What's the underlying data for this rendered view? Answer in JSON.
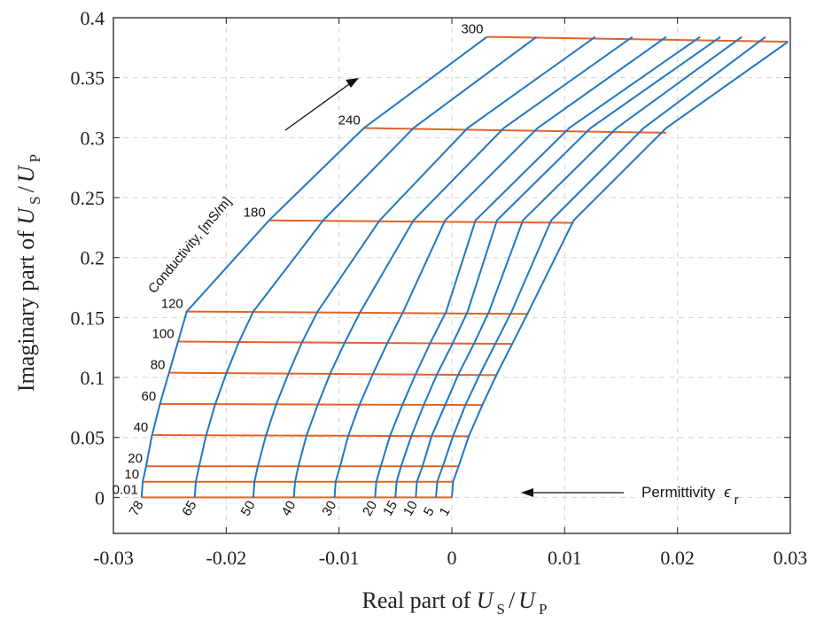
{
  "chart_data": {
    "type": "line",
    "xlabel": {
      "prefix": "Real part of ",
      "a": "U",
      "a_sub": "S",
      "sep": " /",
      "b": "U",
      "b_sub": "P"
    },
    "ylabel": {
      "prefix": "Imaginary part of ",
      "a": "U",
      "a_sub": "S",
      "sep": " /",
      "b": "U",
      "b_sub": "P"
    },
    "xlim": [
      -0.03,
      0.03
    ],
    "ylim": [
      -0.03,
      0.4
    ],
    "x_ticks": [
      -0.03,
      -0.02,
      -0.01,
      0,
      0.01,
      0.02,
      0.03
    ],
    "x_tick_labels": [
      "-0.03",
      "-0.02",
      "-0.01",
      "0",
      "0.01",
      "0.02",
      "0.03"
    ],
    "y_ticks": [
      0,
      0.05,
      0.1,
      0.15,
      0.2,
      0.25,
      0.3,
      0.35,
      0.4
    ],
    "y_tick_labels": [
      "0",
      "0.05",
      "0.1",
      "0.15",
      "0.2",
      "0.25",
      "0.3",
      "0.35",
      "0.4"
    ],
    "grid": true,
    "permittivity_curves": [
      {
        "label": "78",
        "points": [
          [
            -0.0275,
            0.0
          ],
          [
            -0.0274,
            0.013
          ],
          [
            -0.0271,
            0.026
          ],
          [
            -0.0266,
            0.051
          ],
          [
            -0.0259,
            0.077
          ],
          [
            -0.0251,
            0.103
          ],
          [
            -0.0243,
            0.129
          ],
          [
            -0.0235,
            0.155
          ],
          [
            -0.0162,
            0.231
          ],
          [
            -0.0078,
            0.308
          ],
          [
            0.0031,
            0.384
          ]
        ]
      },
      {
        "label": "65",
        "points": [
          [
            -0.0228,
            0.0
          ],
          [
            -0.0227,
            0.013
          ],
          [
            -0.0224,
            0.026
          ],
          [
            -0.0218,
            0.051
          ],
          [
            -0.021,
            0.077
          ],
          [
            -0.02,
            0.103
          ],
          [
            -0.0189,
            0.129
          ],
          [
            -0.0176,
            0.155
          ],
          [
            -0.0114,
            0.231
          ],
          [
            -0.0034,
            0.308
          ],
          [
            0.0075,
            0.384
          ]
        ]
      },
      {
        "label": "50",
        "points": [
          [
            -0.0176,
            0.0
          ],
          [
            -0.0175,
            0.013
          ],
          [
            -0.0172,
            0.026
          ],
          [
            -0.0165,
            0.051
          ],
          [
            -0.0156,
            0.077
          ],
          [
            -0.0145,
            0.103
          ],
          [
            -0.0133,
            0.129
          ],
          [
            -0.0119,
            0.155
          ],
          [
            -0.0064,
            0.231
          ],
          [
            0.0014,
            0.308
          ],
          [
            0.0127,
            0.384
          ]
        ]
      },
      {
        "label": "40",
        "points": [
          [
            -0.014,
            0.0
          ],
          [
            -0.0139,
            0.013
          ],
          [
            -0.0136,
            0.026
          ],
          [
            -0.0129,
            0.051
          ],
          [
            -0.0119,
            0.077
          ],
          [
            -0.0108,
            0.103
          ],
          [
            -0.0095,
            0.129
          ],
          [
            -0.0081,
            0.155
          ],
          [
            -0.0034,
            0.231
          ],
          [
            0.0046,
            0.308
          ],
          [
            0.016,
            0.384
          ]
        ]
      },
      {
        "label": "30",
        "points": [
          [
            -0.0104,
            0.0
          ],
          [
            -0.0103,
            0.013
          ],
          [
            -0.0099,
            0.026
          ],
          [
            -0.0092,
            0.051
          ],
          [
            -0.0082,
            0.077
          ],
          [
            -0.007,
            0.103
          ],
          [
            -0.0057,
            0.129
          ],
          [
            -0.0043,
            0.155
          ],
          [
            -0.0006,
            0.231
          ],
          [
            0.0076,
            0.308
          ],
          [
            0.019,
            0.384
          ]
        ]
      },
      {
        "label": "20",
        "points": [
          [
            -0.0068,
            0.0
          ],
          [
            -0.0067,
            0.013
          ],
          [
            -0.0063,
            0.026
          ],
          [
            -0.0055,
            0.051
          ],
          [
            -0.0044,
            0.077
          ],
          [
            -0.0032,
            0.103
          ],
          [
            -0.0019,
            0.129
          ],
          [
            -0.0005,
            0.155
          ],
          [
            0.0021,
            0.231
          ],
          [
            0.0104,
            0.308
          ],
          [
            0.022,
            0.384
          ]
        ]
      },
      {
        "label": "15",
        "points": [
          [
            -0.005,
            0.0
          ],
          [
            -0.0049,
            0.013
          ],
          [
            -0.0045,
            0.026
          ],
          [
            -0.0036,
            0.051
          ],
          [
            -0.0025,
            0.077
          ],
          [
            -0.0013,
            0.103
          ],
          [
            0.0001,
            0.129
          ],
          [
            0.0014,
            0.155
          ],
          [
            0.004,
            0.231
          ],
          [
            0.0123,
            0.308
          ],
          [
            0.0238,
            0.384
          ]
        ]
      },
      {
        "label": "10",
        "points": [
          [
            -0.0032,
            0.0
          ],
          [
            -0.0031,
            0.013
          ],
          [
            -0.0026,
            0.026
          ],
          [
            -0.0018,
            0.051
          ],
          [
            -0.0006,
            0.077
          ],
          [
            0.0006,
            0.103
          ],
          [
            0.002,
            0.129
          ],
          [
            0.0033,
            0.155
          ],
          [
            0.0063,
            0.231
          ],
          [
            0.0146,
            0.308
          ],
          [
            0.0257,
            0.384
          ]
        ]
      },
      {
        "label": "5",
        "points": [
          [
            -0.0014,
            0.0
          ],
          [
            -0.0013,
            0.013
          ],
          [
            -0.0008,
            0.026
          ],
          [
            0.0001,
            0.051
          ],
          [
            0.0012,
            0.077
          ],
          [
            0.0025,
            0.103
          ],
          [
            0.0039,
            0.129
          ],
          [
            0.0053,
            0.155
          ],
          [
            0.0088,
            0.231
          ],
          [
            0.017,
            0.308
          ],
          [
            0.0278,
            0.384
          ]
        ]
      },
      {
        "label": "1",
        "points": [
          [
            0.0,
            0.0
          ],
          [
            0.0001,
            0.013
          ],
          [
            0.0006,
            0.026
          ],
          [
            0.0015,
            0.051
          ],
          [
            0.0027,
            0.077
          ],
          [
            0.004,
            0.103
          ],
          [
            0.0054,
            0.129
          ],
          [
            0.0068,
            0.155
          ],
          [
            0.0108,
            0.231
          ],
          [
            0.019,
            0.308
          ],
          [
            0.0298,
            0.38
          ]
        ]
      }
    ],
    "conductivity_curves": [
      {
        "label": "0.01",
        "y0": 0.0,
        "y1": 0.0
      },
      {
        "label": "10",
        "y0": 0.013,
        "y1": 0.013
      },
      {
        "label": "20",
        "y0": 0.026,
        "y1": 0.026
      },
      {
        "label": "40",
        "y0": 0.052,
        "y1": 0.051
      },
      {
        "label": "60",
        "y0": 0.078,
        "y1": 0.077
      },
      {
        "label": "80",
        "y0": 0.104,
        "y1": 0.102
      },
      {
        "label": "100",
        "y0": 0.13,
        "y1": 0.128
      },
      {
        "label": "120",
        "y0": 0.155,
        "y1": 0.153
      },
      {
        "label": "180",
        "y0": 0.231,
        "y1": 0.229
      },
      {
        "label": "240",
        "y0": 0.308,
        "y1": 0.304
      },
      {
        "label": "300",
        "y0": 0.384,
        "y1": 0.38
      }
    ],
    "colors": {
      "permittivity": "#1f77c4",
      "conductivity": "#e2622b",
      "grid": "#d6d6d6",
      "axis": "#222222"
    },
    "annotations": {
      "conductivity": "Conductivity, [mS/m]",
      "permittivity": "Permittivity",
      "permittivity_symbol": "ϵ",
      "permittivity_sub": "r"
    }
  }
}
